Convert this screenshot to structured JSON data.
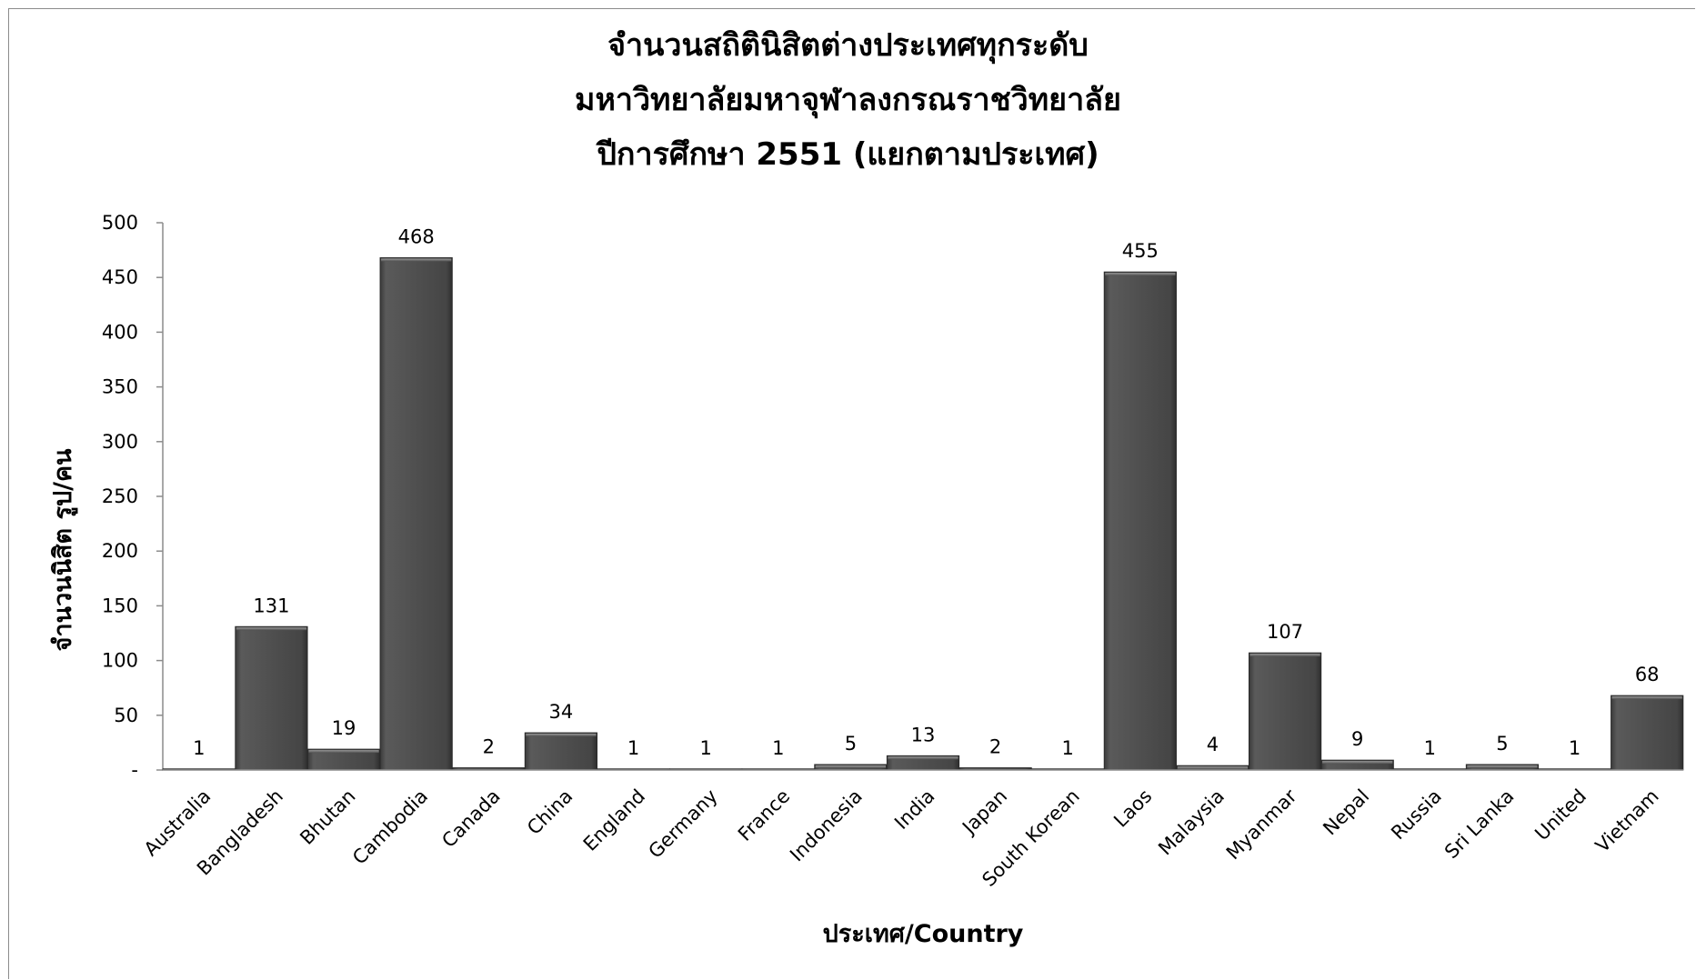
{
  "chart_data": {
    "type": "bar",
    "title_lines": [
      "จำนวนสถิตินิสิตต่างประเทศทุกระดับ",
      "มหาวิทยาลัยมหาจุฬาลงกรณราชวิทยาลัย",
      "ปีการศึกษา 2551 (แยกตามประเทศ)"
    ],
    "xlabel": "ประเทศ/Country",
    "ylabel": "จำนวนนิสิต รูป/คน",
    "ylim": [
      0,
      500
    ],
    "yticks": [
      0,
      50,
      100,
      150,
      200,
      250,
      300,
      350,
      400,
      450,
      500
    ],
    "ytick_labels": [
      "-",
      "50",
      "100",
      "150",
      "200",
      "250",
      "300",
      "350",
      "400",
      "450",
      "500"
    ],
    "categories": [
      "Australia",
      "Bangladesh",
      "Bhutan",
      "Cambodia",
      "Canada",
      "China",
      "England",
      "Germany",
      "France",
      "Indonesia",
      "India",
      "Japan",
      "South Korean",
      "Laos",
      "Malaysia",
      "Myanmar",
      "Nepal",
      "Russia",
      "Sri Lanka",
      "United",
      "Vietnam"
    ],
    "values": [
      1,
      131,
      19,
      468,
      2,
      34,
      1,
      1,
      1,
      5,
      13,
      2,
      1,
      455,
      4,
      107,
      9,
      1,
      5,
      1,
      68
    ],
    "bar_color": "#4d4d4d",
    "grid": false,
    "legend": "none"
  }
}
